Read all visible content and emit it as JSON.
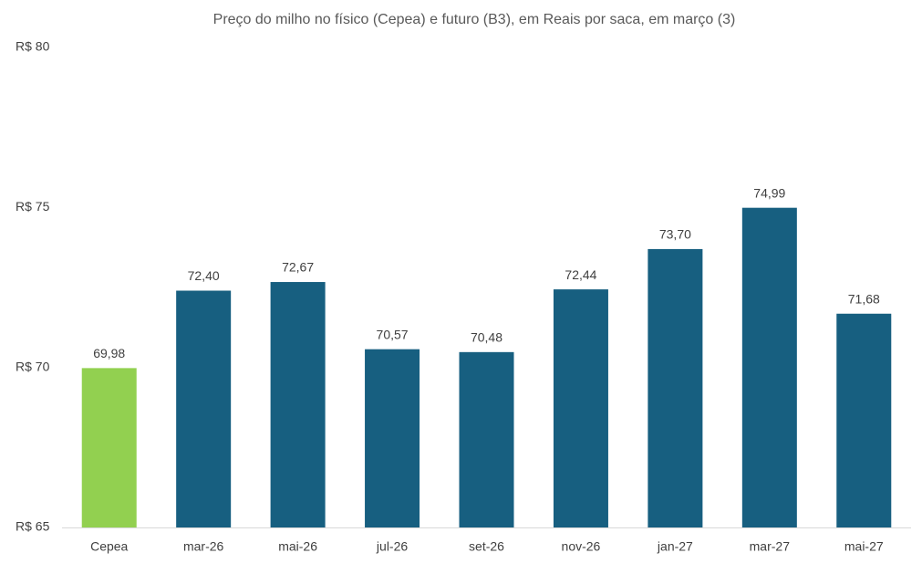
{
  "chart_data": {
    "type": "bar",
    "title": "Preço do milho no físico (Cepea) e futuro (B3), em Reais por saca, em março (3)",
    "categories": [
      "Cepea",
      "mar-26",
      "mai-26",
      "jul-26",
      "set-26",
      "nov-26",
      "jan-27",
      "mar-27",
      "mai-27"
    ],
    "values": [
      69.98,
      72.4,
      72.67,
      70.57,
      70.48,
      72.44,
      73.7,
      74.99,
      71.68
    ],
    "value_labels": [
      "69,98",
      "72,40",
      "72,67",
      "70,57",
      "70,48",
      "72,44",
      "73,70",
      "74,99",
      "71,68"
    ],
    "colors": [
      "#92d050",
      "#175f80",
      "#175f80",
      "#175f80",
      "#175f80",
      "#175f80",
      "#175f80",
      "#175f80",
      "#175f80"
    ],
    "ylim": [
      65,
      80
    ],
    "yticks": [
      {
        "value": 65,
        "label": "R$ 65"
      },
      {
        "value": 70,
        "label": "R$ 70"
      },
      {
        "value": 75,
        "label": "R$ 75"
      },
      {
        "value": 80,
        "label": "R$ 80"
      }
    ],
    "grid": false
  }
}
